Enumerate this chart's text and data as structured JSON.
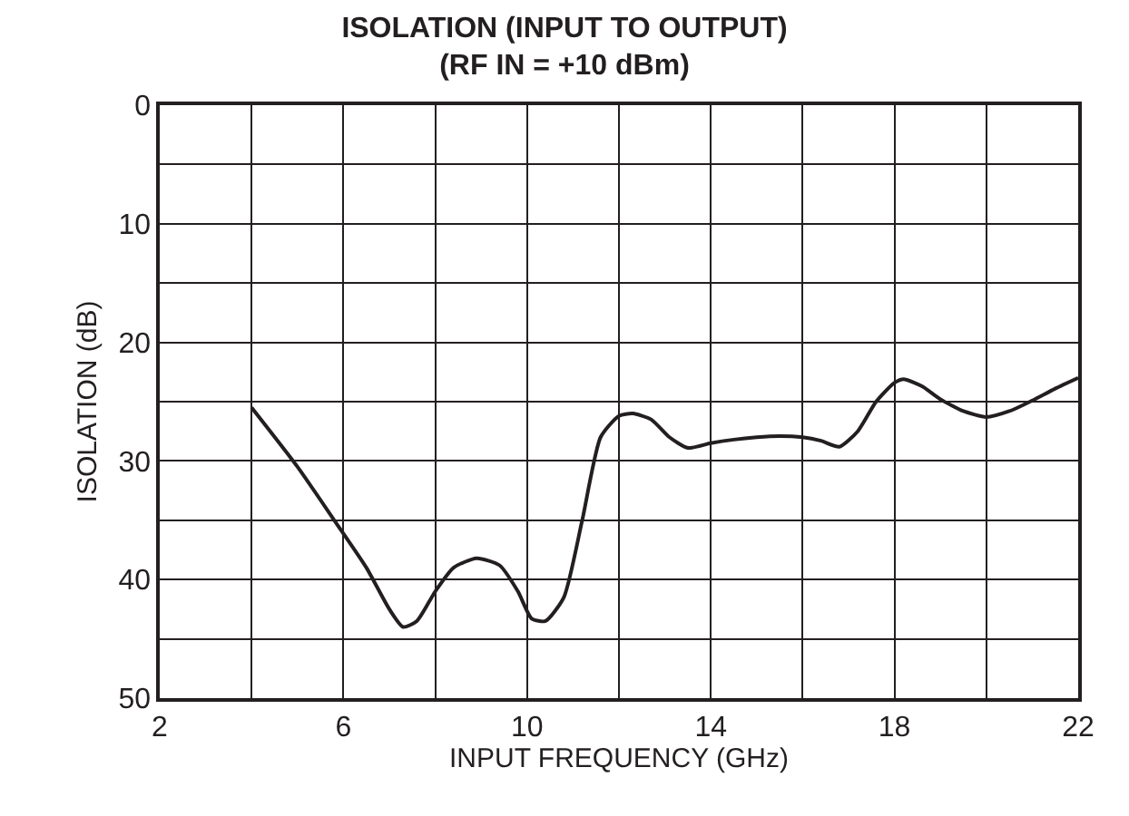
{
  "chart_data": {
    "type": "line",
    "title": "ISOLATION (INPUT TO OUTPUT)",
    "subtitle": "(RF IN = +10 dBm)",
    "xlabel": "INPUT FREQUENCY (GHz)",
    "ylabel": "ISOLATION (dB)",
    "series": [
      {
        "color": "#231f20",
        "x": [
          4,
          5,
          5.8,
          6.5,
          7,
          7.3,
          7.6,
          8,
          8.4,
          8.9,
          9.4,
          9.8,
          10.1,
          10.4,
          10.8,
          11.2,
          11.6,
          12,
          12.3,
          12.7,
          13.1,
          13.5,
          14,
          14.5,
          15,
          15.5,
          16,
          16.4,
          16.8,
          17.2,
          17.6,
          18,
          18.2,
          18.6,
          19,
          19.5,
          20,
          20.5,
          21,
          21.5,
          22
        ],
        "values": [
          25.5,
          30.5,
          35,
          39,
          42.5,
          44,
          43.5,
          41,
          39,
          38.2,
          38.8,
          41,
          43.3,
          43.5,
          41.5,
          35,
          28,
          26.2,
          26,
          26.5,
          28,
          28.9,
          28.5,
          28.2,
          28,
          27.9,
          28,
          28.3,
          28.8,
          27.5,
          25,
          23.4,
          23.1,
          23.7,
          24.8,
          25.8,
          26.3,
          25.8,
          24.9,
          23.9,
          23
        ]
      }
    ],
    "xlim": [
      2,
      22
    ],
    "xticks": [
      2,
      {
        "value": 4,
        "label": null
      },
      6,
      {
        "value": 8,
        "label": null
      },
      10,
      {
        "value": 12,
        "label": null
      },
      14,
      {
        "value": 16,
        "label": null
      },
      18,
      {
        "value": 20,
        "label": null
      },
      22
    ],
    "ylim": [
      50,
      0
    ],
    "yticks": [
      0,
      {
        "value": 5,
        "label": null
      },
      10,
      {
        "value": 15,
        "label": null
      },
      20,
      {
        "value": 25,
        "label": null
      },
      30,
      {
        "value": 35,
        "label": null
      },
      40,
      {
        "value": 45,
        "label": null
      },
      50
    ],
    "grid": true
  }
}
